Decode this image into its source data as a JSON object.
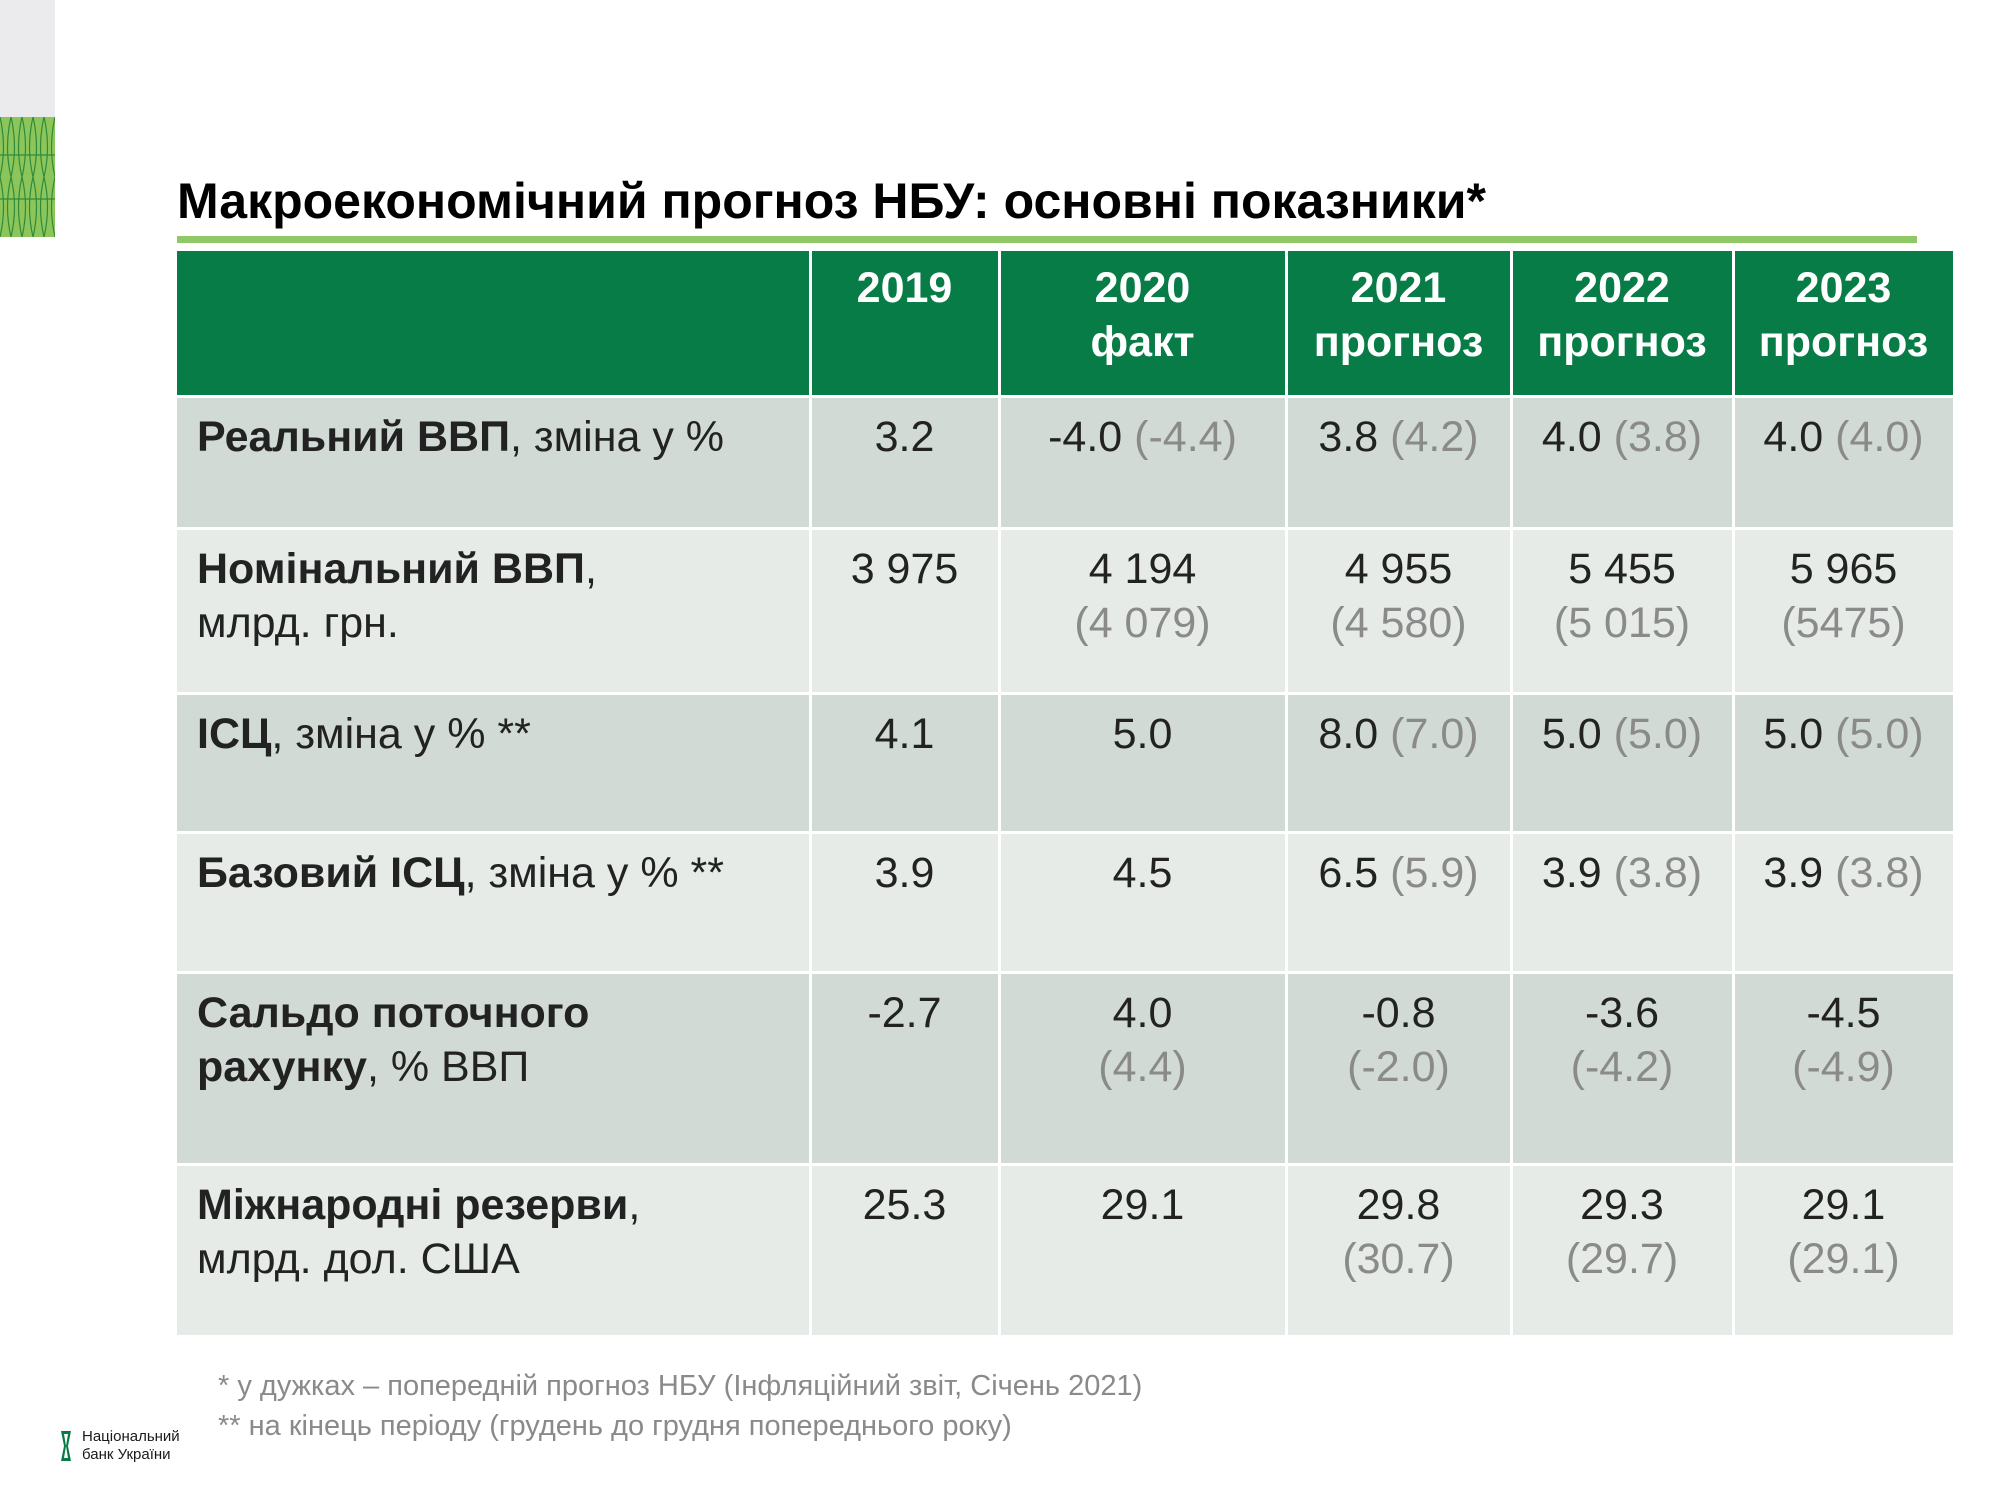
{
  "title": "Макроекономічний прогноз НБУ: основні показники*",
  "colors": {
    "header_bg": "#077c47",
    "accent_line": "#8fc864",
    "row_dark": "#d1dad4",
    "row_light": "#e6ebe8",
    "previous_forecast": "#8a8a8a"
  },
  "table": {
    "headers": [
      {
        "year": "",
        "note": ""
      },
      {
        "year": "2019",
        "note": ""
      },
      {
        "year": "2020",
        "note": "факт"
      },
      {
        "year": "2021",
        "note": "прогноз"
      },
      {
        "year": "2022",
        "note": "прогноз"
      },
      {
        "year": "2023",
        "note": "прогноз"
      }
    ],
    "rows": [
      {
        "label_bold": "Реальний ВВП",
        "label_rest": ", зміна у %",
        "label_line2": "",
        "cells": [
          {
            "value": "3.2",
            "prev": ""
          },
          {
            "value": "-4.0",
            "prev": "(-4.4)"
          },
          {
            "value": "3.8",
            "prev": "(4.2)"
          },
          {
            "value": "4.0",
            "prev": "(3.8)"
          },
          {
            "value": "4.0",
            "prev": "(4.0)"
          }
        ]
      },
      {
        "label_bold": "Номінальний ВВП",
        "label_rest": ",",
        "label_line2": "млрд. грн.",
        "cells": [
          {
            "value": "3 975",
            "prev": ""
          },
          {
            "value": "4 194",
            "prev": "(4 079)"
          },
          {
            "value": "4 955",
            "prev": "(4 580)"
          },
          {
            "value": "5 455",
            "prev": "(5 015)"
          },
          {
            "value": "5 965",
            "prev": "(5475)"
          }
        ]
      },
      {
        "label_bold": "ІСЦ",
        "label_rest": ", зміна у % **",
        "label_line2": "",
        "cells": [
          {
            "value": "4.1",
            "prev": ""
          },
          {
            "value": "5.0",
            "prev": ""
          },
          {
            "value": "8.0",
            "prev": "(7.0)"
          },
          {
            "value": "5.0",
            "prev": "(5.0)"
          },
          {
            "value": "5.0",
            "prev": "(5.0)"
          }
        ]
      },
      {
        "label_bold": "Базовий ІСЦ",
        "label_rest": ", зміна у % **",
        "label_line2": "",
        "cells": [
          {
            "value": "3.9",
            "prev": ""
          },
          {
            "value": "4.5",
            "prev": ""
          },
          {
            "value": "6.5",
            "prev": "(5.9)"
          },
          {
            "value": "3.9",
            "prev": "(3.8)"
          },
          {
            "value": "3.9",
            "prev": "(3.8)"
          }
        ]
      },
      {
        "label_bold": "Сальдо поточного рахунку",
        "label_rest": ", % ВВП",
        "label_line2": "",
        "cells": [
          {
            "value": "-2.7",
            "prev": ""
          },
          {
            "value": "4.0",
            "prev": "(4.4)"
          },
          {
            "value": "-0.8",
            "prev": "(-2.0)"
          },
          {
            "value": "-3.6",
            "prev": "(-4.2)"
          },
          {
            "value": "-4.5",
            "prev": "(-4.9)"
          }
        ]
      },
      {
        "label_bold": "Міжнародні резерви",
        "label_rest": ",",
        "label_line2": "млрд. дол. США",
        "cells": [
          {
            "value": "25.3",
            "prev": ""
          },
          {
            "value": "29.1",
            "prev": ""
          },
          {
            "value": "29.8",
            "prev": "(30.7)"
          },
          {
            "value": "29.3",
            "prev": "(29.7)"
          },
          {
            "value": "29.1",
            "prev": "(29.1)"
          }
        ]
      }
    ]
  },
  "footnotes": [
    "* у дужках – попередній прогноз НБУ (Інфляційний звіт, Січень 2021)",
    "** на кінець періоду (грудень до грудня попереднього року)"
  ],
  "logo": {
    "line1": "Національний",
    "line2": "банк України",
    "icon": "nbu-logo-icon"
  }
}
